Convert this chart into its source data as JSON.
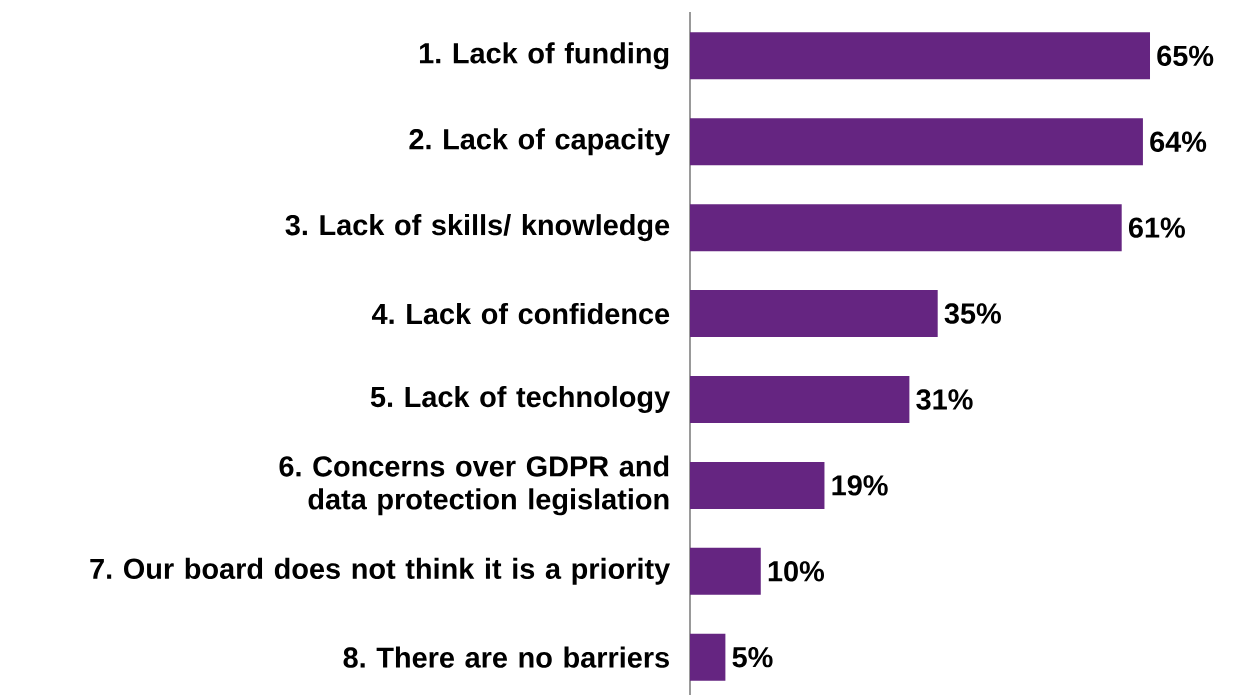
{
  "chart_data": {
    "type": "bar",
    "orientation": "horizontal",
    "color": "#652581",
    "categories": [
      "1. Lack of funding",
      "2. Lack of capacity",
      "3. Lack of skills/ knowledge",
      "4. Lack of confidence",
      "5. Lack of technology",
      "6. Concerns over GDPR and data protection legislation",
      "7. Our board does not think it is a priority",
      "8. There are no barriers"
    ],
    "values": [
      65,
      64,
      61,
      35,
      31,
      19,
      10,
      5
    ],
    "value_labels": [
      "65%",
      "64%",
      "61%",
      "35%",
      "31%",
      "19%",
      "10%",
      "5%"
    ]
  }
}
